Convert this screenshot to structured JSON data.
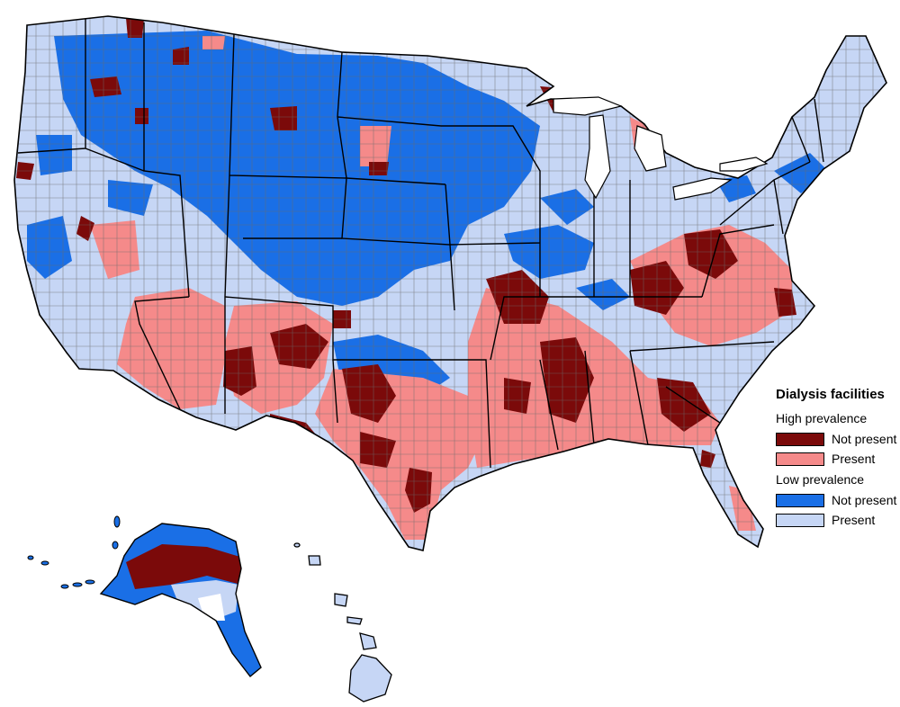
{
  "legend": {
    "title": "Dialysis facilities",
    "groups": [
      {
        "label": "High prevalence",
        "items": [
          {
            "label": "Not present",
            "color": "#7b0a0a"
          },
          {
            "label": "Present",
            "color": "#f58a8a"
          }
        ]
      },
      {
        "label": "Low prevalence",
        "items": [
          {
            "label": "Not present",
            "color": "#1a6fe6"
          },
          {
            "label": "Present",
            "color": "#c6d6f5"
          }
        ]
      }
    ]
  },
  "colors": {
    "outline": "#000000",
    "county_line": "#6b6b6b",
    "background": "#ffffff"
  }
}
